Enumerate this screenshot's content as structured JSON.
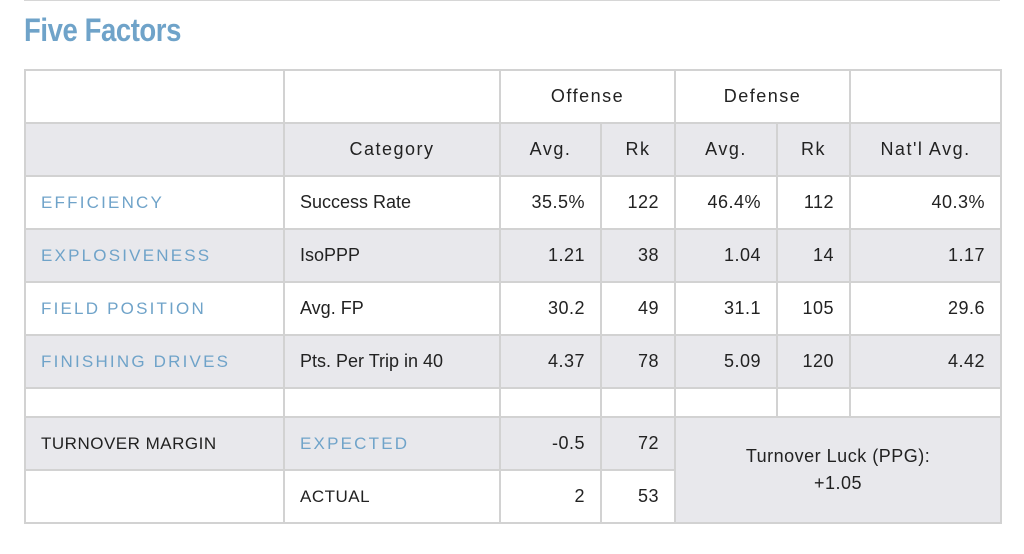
{
  "title": "Five Factors",
  "header": {
    "offense": "Offense",
    "defense": "Defense",
    "category": "Category",
    "off_avg": "Avg.",
    "off_rk": "Rk",
    "def_avg": "Avg.",
    "def_rk": "Rk",
    "natl_avg": "Nat'l Avg."
  },
  "rows": [
    {
      "factor": "EFFICIENCY",
      "category": "Success Rate",
      "off_avg": "35.5%",
      "off_rk": "122",
      "def_avg": "46.4%",
      "def_rk": "112",
      "natl_avg": "40.3%"
    },
    {
      "factor": "EXPLOSIVENESS",
      "category": "IsoPPP",
      "off_avg": "1.21",
      "off_rk": "38",
      "def_avg": "1.04",
      "def_rk": "14",
      "natl_avg": "1.17"
    },
    {
      "factor": "FIELD POSITION",
      "category": "Avg. FP",
      "off_avg": "30.2",
      "off_rk": "49",
      "def_avg": "31.1",
      "def_rk": "105",
      "natl_avg": "29.6"
    },
    {
      "factor": "FINISHING DRIVES",
      "category": "Pts. Per Trip in 40",
      "off_avg": "4.37",
      "off_rk": "78",
      "def_avg": "5.09",
      "def_rk": "120",
      "natl_avg": "4.42"
    }
  ],
  "turnover": {
    "label": "TURNOVER MARGIN",
    "expected_label": "EXPECTED",
    "expected_value": "-0.5",
    "expected_rank": "72",
    "actual_label": "ACTUAL",
    "actual_value": "2",
    "actual_rank": "53",
    "luck_label": "Turnover Luck (PPG):",
    "luck_value": "+1.05"
  },
  "colors": {
    "accent": "#6fa3c9",
    "shade": "#e8e8ec",
    "border": "#d2d2d2"
  }
}
